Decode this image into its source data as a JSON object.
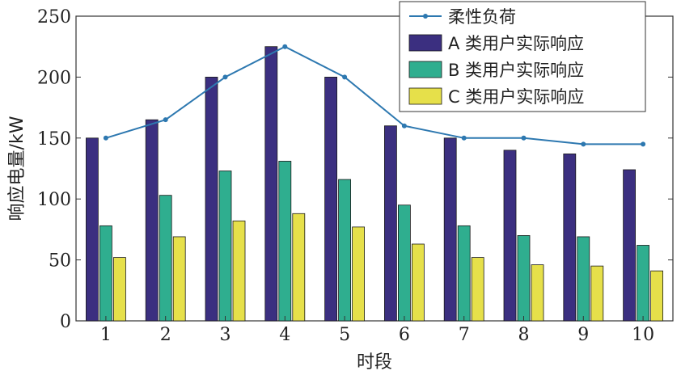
{
  "chart_data": {
    "type": "bar",
    "categories": [
      "1",
      "2",
      "3",
      "4",
      "5",
      "6",
      "7",
      "8",
      "9",
      "10"
    ],
    "xlabel": "时段",
    "ylabel": "响应电量/kW",
    "ylim": [
      0,
      250
    ],
    "yticks": [
      "0",
      "50",
      "100",
      "150",
      "200",
      "250"
    ],
    "grid": false,
    "legend_position": "top-right",
    "series": [
      {
        "name": "A 类用户实际响应",
        "kind": "bar",
        "color": "#3b2f80",
        "values": [
          150,
          165,
          200,
          225,
          200,
          160,
          150,
          140,
          137,
          124
        ]
      },
      {
        "name": "B 类用户实际响应",
        "kind": "bar",
        "color": "#2fae8f",
        "values": [
          78,
          103,
          123,
          131,
          116,
          95,
          78,
          70,
          69,
          62
        ]
      },
      {
        "name": "C 类用户实际响应",
        "kind": "bar",
        "color": "#e6e04a",
        "values": [
          52,
          69,
          82,
          88,
          77,
          63,
          52,
          46,
          45,
          41
        ]
      },
      {
        "name": "柔性负荷",
        "kind": "line",
        "color": "#2d78b0",
        "values": [
          150,
          165,
          200,
          225,
          200,
          160,
          150,
          150,
          145,
          145
        ]
      }
    ]
  }
}
